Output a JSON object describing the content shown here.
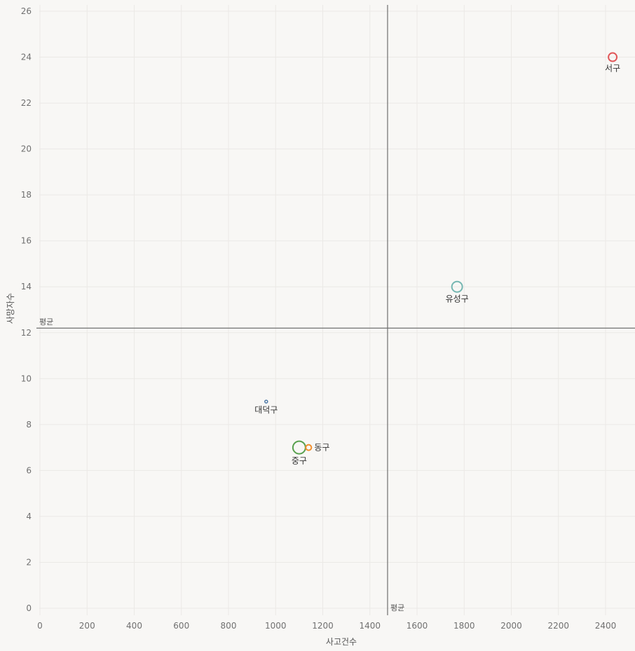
{
  "chart_data": {
    "type": "scatter",
    "title": "",
    "xlabel": "사고건수",
    "ylabel": "사망자수",
    "xlim": [
      0,
      2520
    ],
    "ylim": [
      -0.3,
      26.3
    ],
    "x_ticks": [
      0,
      200,
      400,
      600,
      800,
      1000,
      1200,
      1400,
      1600,
      1800,
      2000,
      2200,
      2400
    ],
    "y_ticks": [
      0,
      2,
      4,
      6,
      8,
      10,
      12,
      14,
      16,
      18,
      20,
      22,
      24,
      26
    ],
    "grid": true,
    "reference_lines": [
      {
        "axis": "x",
        "value": 1475,
        "label": "평균"
      },
      {
        "axis": "y",
        "value": 12.2,
        "label": "평균"
      }
    ],
    "points": [
      {
        "name": "서구",
        "x": 2430,
        "y": 24,
        "color": "#e15759",
        "size": 6,
        "label_pos": "below"
      },
      {
        "name": "유성구",
        "x": 1770,
        "y": 14,
        "color": "#76b7b2",
        "size": 7.5,
        "label_pos": "below"
      },
      {
        "name": "대덕구",
        "x": 960,
        "y": 9,
        "color": "#4e79a7",
        "size": 2,
        "label_pos": "below"
      },
      {
        "name": "중구",
        "x": 1100,
        "y": 7,
        "color": "#59a14f",
        "size": 9,
        "label_pos": "below"
      },
      {
        "name": "동구",
        "x": 1140,
        "y": 7,
        "color": "#f28e2b",
        "size": 4,
        "label_pos": "right"
      }
    ]
  }
}
